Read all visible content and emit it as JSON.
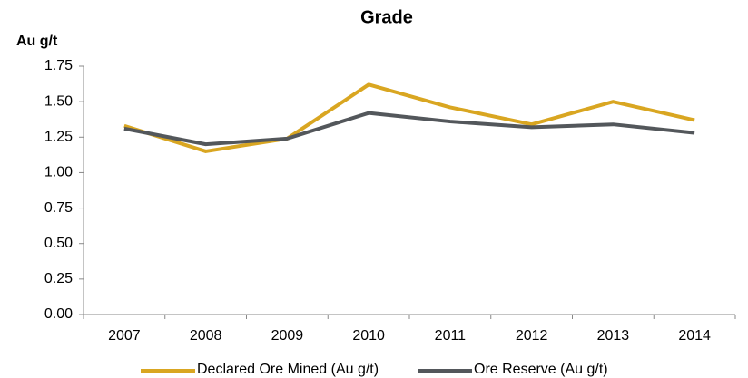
{
  "chart_data": {
    "type": "line",
    "title": "Grade",
    "y_label": "Au g/t",
    "categories": [
      "2007",
      "2008",
      "2009",
      "2010",
      "2011",
      "2012",
      "2013",
      "2014"
    ],
    "series": [
      {
        "name": "Declared Ore Mined  (Au g/t)",
        "color": "#d9a621",
        "values": [
          1.33,
          1.15,
          1.24,
          1.62,
          1.46,
          1.34,
          1.5,
          1.37
        ]
      },
      {
        "name": "Ore Reserve  (Au g/t)",
        "color": "#53575b",
        "values": [
          1.31,
          1.2,
          1.24,
          1.42,
          1.36,
          1.32,
          1.34,
          1.28
        ]
      }
    ],
    "ylim": [
      0,
      1.75
    ],
    "yticks": [
      {
        "value": 0,
        "label": "0.00"
      },
      0.25,
      {
        "value": 0.5,
        "label": "0.50"
      },
      0.75,
      {
        "value": 1,
        "label": "1.00"
      },
      1.25,
      {
        "value": 1.5,
        "label": "1.50"
      },
      1.75
    ],
    "grid": false,
    "legend": "bottom"
  }
}
